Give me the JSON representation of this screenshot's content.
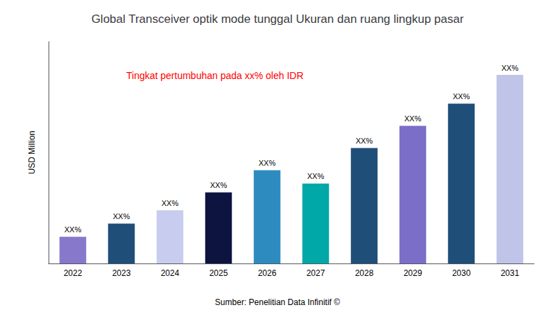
{
  "chart_data": {
    "type": "bar",
    "title": "Global Transceiver optik mode tunggal Ukuran dan ruang lingkup pasar",
    "ylabel": "USD Million",
    "categories": [
      "2022",
      "2023",
      "2024",
      "2025",
      "2026",
      "2027",
      "2028",
      "2029",
      "2030",
      "2031"
    ],
    "values": [
      12,
      18,
      24,
      32,
      42,
      36,
      52,
      62,
      72,
      85
    ],
    "colors": [
      "#8878CC",
      "#1F4E79",
      "#C8CCEE",
      "#0D1440",
      "#2E8BC0",
      "#00A8A8",
      "#1F4E79",
      "#7B6EC8",
      "#1F4E79",
      "#C0C4E8"
    ],
    "value_labels": [
      "XX%",
      "XX%",
      "XX%",
      "XX%",
      "XX%",
      "XX%",
      "XX%",
      "XX%",
      "XX%",
      "XX%"
    ],
    "ylim": [
      0,
      100
    ],
    "tick_labels": "x",
    "grid": false,
    "annotations": [
      {
        "text": "Tingkat pertumbuhan pada xx% oleh IDR",
        "color": "#FF0000"
      }
    ],
    "source": "Sumber: Penelitian Data Infinitif ©"
  }
}
